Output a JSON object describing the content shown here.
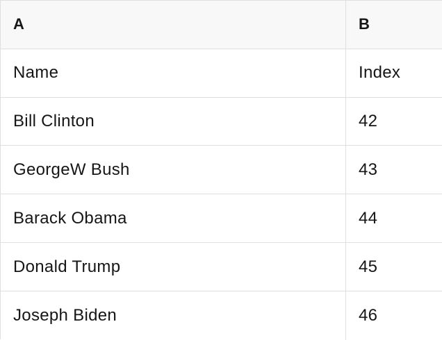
{
  "table": {
    "column_headers": [
      "A",
      "B"
    ],
    "rows": [
      [
        "Name",
        "Index"
      ],
      [
        "Bill Clinton",
        "42"
      ],
      [
        "GeorgeW Bush",
        "43"
      ],
      [
        "Barack Obama",
        "44"
      ],
      [
        "Donald Trump",
        "45"
      ],
      [
        "Joseph Biden",
        "46"
      ]
    ]
  },
  "colors": {
    "header_bg": "#f8f8f8",
    "border": "#dfdfdf",
    "text": "#161616",
    "row_bg": "#ffffff"
  }
}
